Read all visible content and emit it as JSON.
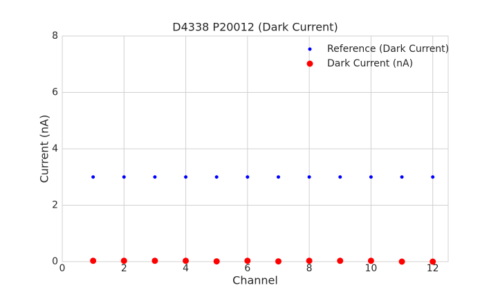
{
  "chart_data": {
    "type": "scatter",
    "title": "D4338 P20012 (Dark Current)",
    "x_label": "Channel",
    "y_label": "Current (nA)",
    "x": [
      1,
      2,
      3,
      4,
      5,
      6,
      7,
      8,
      9,
      10,
      11,
      12
    ],
    "series": [
      {
        "name": "Reference (Dark Current)",
        "color": "#0000ff",
        "values": [
          3,
          3,
          3,
          3,
          3,
          3,
          3,
          3,
          3,
          3,
          3,
          3
        ]
      },
      {
        "name": "Dark Current (nA)",
        "color": "#ff0000",
        "values": [
          0.03,
          0.03,
          0.03,
          0.03,
          0.01,
          0.03,
          0.01,
          0.03,
          0.03,
          0.03,
          0.0,
          0.0
        ]
      }
    ],
    "xlim": [
      0,
      12.5
    ],
    "xticks": [
      0,
      2,
      4,
      6,
      8,
      10,
      12
    ],
    "ylim": [
      0,
      8
    ],
    "yticks": [
      0,
      2,
      4,
      6,
      8
    ],
    "grid": true,
    "legend": "upper-right"
  }
}
